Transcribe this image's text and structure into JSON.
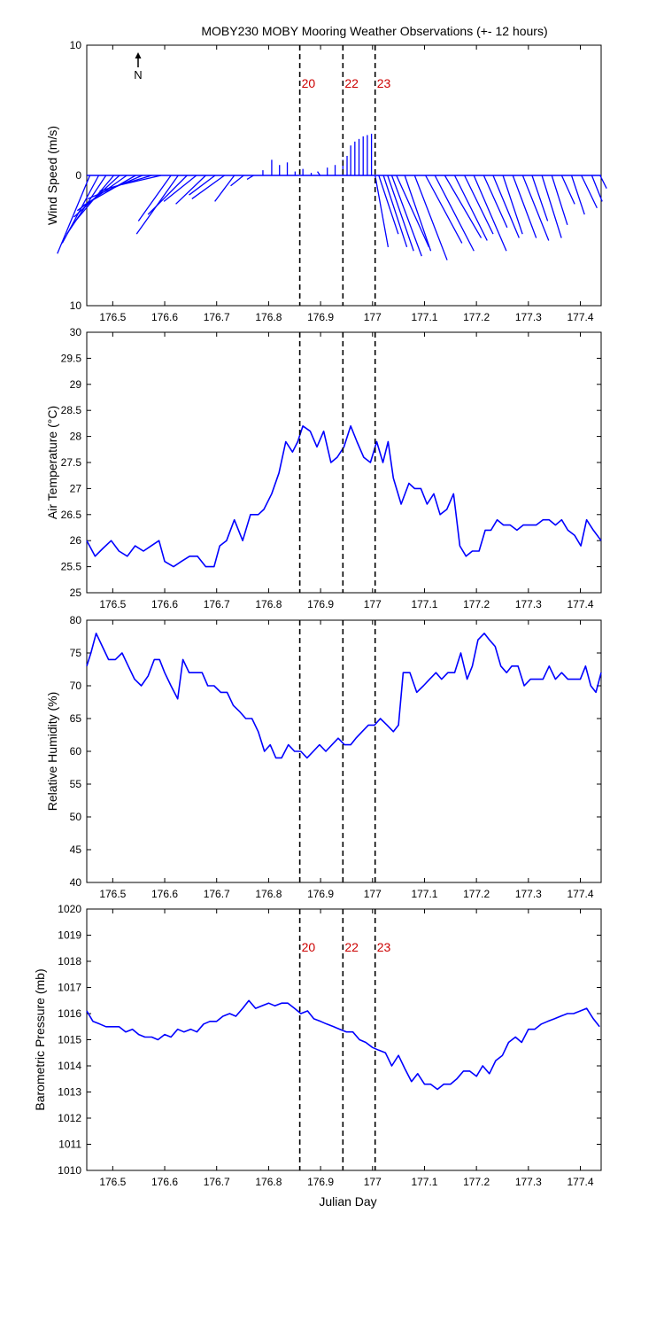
{
  "title": "MOBY230 MOBY Mooring Weather Observations (+- 12 hours)",
  "xlabel": "Julian Day",
  "north_label": "N",
  "colors": {
    "series": "#0000ff",
    "marker": "#cc0000",
    "axis": "#000000"
  },
  "x_ticks": [
    176.5,
    176.6,
    176.7,
    176.8,
    176.9,
    177,
    177.1,
    177.2,
    177.3,
    177.4
  ],
  "xlim": [
    176.45,
    177.44
  ],
  "markers": [
    {
      "label": "20",
      "x": 176.86
    },
    {
      "label": "22",
      "x": 176.943
    },
    {
      "label": "23",
      "x": 177.005
    }
  ],
  "chart_data": [
    {
      "type": "line",
      "name": "wind",
      "ylabel": "Wind Speed (m/s)",
      "ylim": [
        -10,
        10
      ],
      "y_ticks": [
        10,
        0,
        10
      ],
      "marker_labels_shown": true,
      "x": [
        176.456,
        176.473,
        176.487,
        176.502,
        176.513,
        176.527,
        176.544,
        176.557,
        176.575,
        176.593,
        176.612,
        176.626,
        176.643,
        176.661,
        176.679,
        176.697,
        176.715,
        176.734,
        176.752,
        176.771,
        176.789,
        176.806,
        176.821,
        176.836,
        176.851,
        176.866,
        176.882,
        176.899,
        176.913,
        176.928,
        176.943,
        176.951,
        176.958,
        176.966,
        176.974,
        176.982,
        176.99,
        176.998,
        177.005,
        177.012,
        177.021,
        177.029,
        177.037,
        177.046,
        177.062,
        177.081,
        177.102,
        177.12,
        177.139,
        177.158,
        177.177,
        177.195,
        177.214,
        177.232,
        177.251,
        177.27,
        177.289,
        177.307,
        177.326,
        177.345,
        177.364,
        177.383,
        177.402,
        177.422,
        177.438
      ],
      "vectors": [
        [
          -2.5,
          -6
        ],
        [
          -2.8,
          -5.2
        ],
        [
          -3,
          -4.5
        ],
        [
          -3.2,
          -3.8
        ],
        [
          -3.5,
          -3.2
        ],
        [
          -3.8,
          -2.7
        ],
        [
          -4,
          -2.3
        ],
        [
          -4.2,
          -1.8
        ],
        [
          -4,
          -1.2
        ],
        [
          -3,
          -0.7
        ],
        [
          -2.5,
          -3.5
        ],
        [
          -3.2,
          -4.5
        ],
        [
          -3,
          -3
        ],
        [
          -2.5,
          -2
        ],
        [
          -2.3,
          -2.2
        ],
        [
          -2,
          -1.5
        ],
        [
          -2.5,
          -1.8
        ],
        [
          -1.5,
          -2
        ],
        [
          -1,
          -0.8
        ],
        [
          -0.5,
          -0.3
        ],
        [
          0,
          0.4
        ],
        [
          0,
          1.2
        ],
        [
          0,
          0.8
        ],
        [
          0,
          1
        ],
        [
          0,
          0.3
        ],
        [
          0,
          0.5
        ],
        [
          0,
          0.2
        ],
        [
          -0.2,
          0.3
        ],
        [
          0,
          0.6
        ],
        [
          0,
          0.8
        ],
        [
          0,
          1.2
        ],
        [
          0,
          1.5
        ],
        [
          0,
          2.3
        ],
        [
          0,
          2.6
        ],
        [
          0,
          2.8
        ],
        [
          0,
          3
        ],
        [
          0,
          3.1
        ],
        [
          0,
          3.2
        ],
        [
          1,
          -5.5
        ],
        [
          1.5,
          -4.5
        ],
        [
          1.8,
          -5.5
        ],
        [
          2,
          -5.8
        ],
        [
          2.3,
          -6.2
        ],
        [
          2.5,
          -5.5
        ],
        [
          2,
          -5.8
        ],
        [
          2.5,
          -6.5
        ],
        [
          2.8,
          -5.2
        ],
        [
          3,
          -5.8
        ],
        [
          2.8,
          -4.8
        ],
        [
          2.5,
          -5
        ],
        [
          2.2,
          -4.5
        ],
        [
          2.5,
          -5.8
        ],
        [
          1.8,
          -4
        ],
        [
          2,
          -4.8
        ],
        [
          1.5,
          -4.5
        ],
        [
          1.8,
          -4.8
        ],
        [
          2,
          -5
        ],
        [
          1.2,
          -3.5
        ],
        [
          1.5,
          -4.8
        ],
        [
          1.2,
          -3.8
        ],
        [
          1,
          -2.2
        ],
        [
          1,
          -3
        ],
        [
          1.2,
          -2.5
        ],
        [
          0.8,
          -2
        ],
        [
          0.5,
          -1
        ]
      ]
    },
    {
      "type": "line",
      "name": "air_temperature",
      "ylabel": "Air Temperature (°C)",
      "ylim": [
        25,
        30
      ],
      "y_ticks": [
        25,
        25.5,
        26,
        26.5,
        27,
        27.5,
        28,
        28.5,
        29,
        29.5,
        30
      ],
      "x": [
        176.45,
        176.466,
        176.481,
        176.497,
        176.512,
        176.528,
        176.543,
        176.559,
        176.574,
        176.589,
        176.6,
        176.617,
        176.632,
        176.648,
        176.663,
        176.679,
        176.695,
        176.706,
        176.719,
        176.734,
        176.75,
        176.765,
        176.78,
        176.791,
        176.806,
        176.82,
        176.833,
        176.846,
        176.856,
        176.866,
        176.88,
        176.893,
        176.906,
        176.92,
        176.932,
        176.945,
        176.958,
        176.97,
        176.983,
        176.996,
        177.008,
        177.02,
        177.03,
        177.04,
        177.055,
        177.07,
        177.081,
        177.093,
        177.105,
        177.118,
        177.13,
        177.143,
        177.156,
        177.168,
        177.18,
        177.192,
        177.205,
        177.217,
        177.228,
        177.24,
        177.252,
        177.265,
        177.278,
        177.29,
        177.303,
        177.315,
        177.328,
        177.34,
        177.352,
        177.364,
        177.376,
        177.389,
        177.401,
        177.412,
        177.425,
        177.44
      ],
      "y": [
        26,
        25.7,
        25.85,
        26,
        25.8,
        25.7,
        25.9,
        25.8,
        25.9,
        26,
        25.6,
        25.5,
        25.6,
        25.7,
        25.7,
        25.5,
        25.5,
        25.9,
        26,
        26.4,
        26,
        26.5,
        26.5,
        26.6,
        26.9,
        27.3,
        27.9,
        27.7,
        27.9,
        28.2,
        28.1,
        27.8,
        28.1,
        27.5,
        27.6,
        27.8,
        28.2,
        27.9,
        27.6,
        27.5,
        27.9,
        27.5,
        27.9,
        27.2,
        26.7,
        27.1,
        27,
        27,
        26.7,
        26.9,
        26.5,
        26.6,
        26.9,
        25.9,
        25.7,
        25.8,
        25.8,
        26.2,
        26.2,
        26.4,
        26.3,
        26.3,
        26.2,
        26.3,
        26.3,
        26.3,
        26.4,
        26.4,
        26.3,
        26.4,
        26.2,
        26.1,
        25.9,
        26.4,
        26.2,
        26
      ]
    },
    {
      "type": "line",
      "name": "relative_humidity",
      "ylabel": "Relative Humidity (%)",
      "ylim": [
        40,
        80
      ],
      "y_ticks": [
        40,
        45,
        50,
        55,
        60,
        65,
        70,
        75,
        80
      ],
      "x": [
        176.45,
        176.458,
        176.468,
        176.48,
        176.492,
        176.505,
        176.518,
        176.53,
        176.542,
        176.555,
        176.568,
        176.58,
        176.59,
        176.6,
        176.612,
        176.625,
        176.635,
        176.647,
        176.66,
        176.672,
        176.683,
        176.695,
        176.708,
        176.72,
        176.732,
        176.745,
        176.756,
        176.768,
        176.78,
        176.792,
        176.803,
        176.814,
        176.825,
        176.838,
        176.85,
        176.862,
        176.874,
        176.886,
        176.898,
        176.91,
        176.922,
        176.934,
        176.946,
        176.958,
        176.968,
        176.98,
        176.992,
        177.004,
        177.015,
        177.028,
        177.04,
        177.05,
        177.059,
        177.072,
        177.085,
        177.098,
        177.11,
        177.122,
        177.133,
        177.145,
        177.158,
        177.17,
        177.182,
        177.192,
        177.203,
        177.215,
        177.225,
        177.236,
        177.247,
        177.258,
        177.268,
        177.28,
        177.292,
        177.304,
        177.316,
        177.328,
        177.34,
        177.352,
        177.364,
        177.376,
        177.388,
        177.4,
        177.41,
        177.42,
        177.43,
        177.44
      ],
      "y": [
        73,
        75,
        78,
        76,
        74,
        74,
        75,
        73,
        71,
        70,
        71.5,
        74,
        74,
        72,
        70,
        68,
        74,
        72,
        72,
        72,
        70,
        70,
        69,
        69,
        67,
        66,
        65,
        65,
        63,
        60,
        61,
        59,
        59,
        61,
        60,
        60,
        59,
        60,
        61,
        60,
        61,
        62,
        61,
        61,
        62,
        63,
        64,
        64,
        65,
        64,
        63,
        64,
        72,
        72,
        69,
        70,
        71,
        72,
        71,
        72,
        72,
        75,
        71,
        73,
        77,
        78,
        77,
        76,
        73,
        72,
        73,
        73,
        70,
        71,
        71,
        71,
        73,
        71,
        72,
        71,
        71,
        71,
        73,
        70,
        69,
        72
      ]
    },
    {
      "type": "line",
      "name": "barometric_pressure",
      "ylabel": "Barometric Pressure (mb)",
      "ylim": [
        1010,
        1020
      ],
      "y_ticks": [
        1010,
        1011,
        1012,
        1013,
        1014,
        1015,
        1016,
        1017,
        1018,
        1019,
        1020
      ],
      "marker_labels_shown": true,
      "x": [
        176.45,
        176.462,
        176.475,
        176.487,
        176.5,
        176.512,
        176.525,
        176.538,
        176.55,
        176.562,
        176.575,
        176.587,
        176.6,
        176.612,
        176.625,
        176.637,
        176.65,
        176.662,
        176.675,
        176.687,
        176.7,
        176.712,
        176.725,
        176.737,
        176.75,
        176.762,
        176.775,
        176.787,
        176.8,
        176.812,
        176.825,
        176.837,
        176.85,
        176.862,
        176.875,
        176.887,
        176.9,
        176.912,
        176.925,
        176.937,
        176.95,
        176.962,
        176.975,
        176.987,
        177,
        177.012,
        177.025,
        177.037,
        177.05,
        177.062,
        177.075,
        177.087,
        177.1,
        177.112,
        177.125,
        177.137,
        177.15,
        177.162,
        177.175,
        177.187,
        177.2,
        177.212,
        177.225,
        177.237,
        177.25,
        177.262,
        177.275,
        177.287,
        177.3,
        177.312,
        177.325,
        177.337,
        177.35,
        177.362,
        177.375,
        177.387,
        177.4,
        177.412,
        177.425,
        177.437
      ],
      "y": [
        1016.1,
        1015.7,
        1015.6,
        1015.5,
        1015.5,
        1015.5,
        1015.3,
        1015.4,
        1015.2,
        1015.1,
        1015.1,
        1015,
        1015.2,
        1015.1,
        1015.4,
        1015.3,
        1015.4,
        1015.3,
        1015.6,
        1015.7,
        1015.7,
        1015.9,
        1016,
        1015.9,
        1016.2,
        1016.5,
        1016.2,
        1016.3,
        1016.4,
        1016.3,
        1016.4,
        1016.4,
        1016.2,
        1016,
        1016.1,
        1015.8,
        1015.7,
        1015.6,
        1015.5,
        1015.4,
        1015.3,
        1015.3,
        1015,
        1014.9,
        1014.7,
        1014.6,
        1014.5,
        1014,
        1014.4,
        1013.9,
        1013.4,
        1013.7,
        1013.3,
        1013.3,
        1013.1,
        1013.3,
        1013.3,
        1013.5,
        1013.8,
        1013.8,
        1013.6,
        1014,
        1013.7,
        1014.2,
        1014.4,
        1014.9,
        1015.1,
        1014.9,
        1015.4,
        1015.4,
        1015.6,
        1015.7,
        1015.8,
        1015.9,
        1016,
        1016,
        1016.1,
        1016.2,
        1015.8,
        1015.5
      ]
    }
  ]
}
